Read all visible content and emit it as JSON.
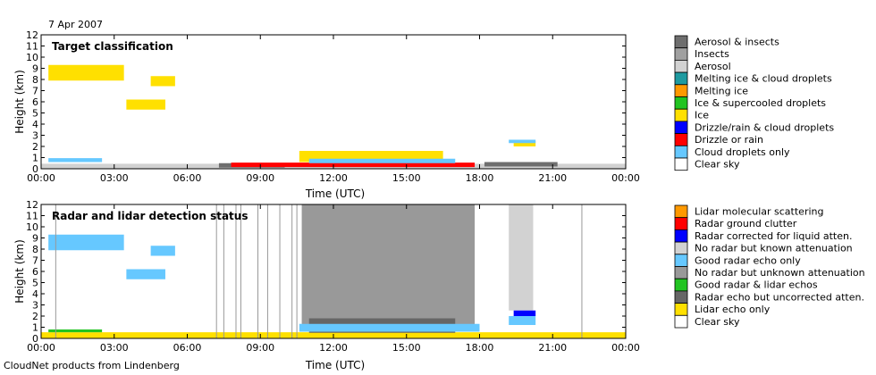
{
  "date_label": "7 Apr 2007",
  "footer_label": "CloudNet products from Lindenberg",
  "chart_data": [
    {
      "type": "heatmap",
      "title": "Target classification",
      "xlabel": "Time (UTC)",
      "ylabel": "Height (km)",
      "xlim": [
        0,
        24
      ],
      "ylim": [
        0,
        12
      ],
      "xticks": [
        "00:00",
        "03:00",
        "06:00",
        "09:00",
        "12:00",
        "15:00",
        "18:00",
        "21:00",
        "00:00"
      ],
      "yticks": [
        "0",
        "1",
        "2",
        "3",
        "4",
        "5",
        "6",
        "7",
        "8",
        "9",
        "10",
        "11",
        "12"
      ],
      "legend": [
        {
          "label": "Aerosol & insects",
          "color": "#6e6e6e"
        },
        {
          "label": "Insects",
          "color": "#a0a0a0"
        },
        {
          "label": "Aerosol",
          "color": "#d2d2d2"
        },
        {
          "label": "Melting ice & cloud droplets",
          "color": "#1e9aa0"
        },
        {
          "label": "Melting ice",
          "color": "#ff9900"
        },
        {
          "label": "Ice & supercooled droplets",
          "color": "#22c422"
        },
        {
          "label": "Ice",
          "color": "#ffe000"
        },
        {
          "label": "Drizzle/rain & cloud droplets",
          "color": "#0000ff"
        },
        {
          "label": "Drizzle or rain",
          "color": "#ff0000"
        },
        {
          "label": "Cloud droplets only",
          "color": "#66c8ff"
        },
        {
          "label": "Clear sky",
          "color": "#ffffff"
        }
      ],
      "regions": [
        {
          "class": "Ice",
          "t": [
            0.3,
            3.4
          ],
          "h": [
            7.9,
            9.3
          ]
        },
        {
          "class": "Ice",
          "t": [
            4.5,
            5.5
          ],
          "h": [
            7.4,
            8.3
          ]
        },
        {
          "class": "Ice",
          "t": [
            3.5,
            5.1
          ],
          "h": [
            5.3,
            6.2
          ]
        },
        {
          "class": "Aerosol",
          "t": [
            0.0,
            24.0
          ],
          "h": [
            0.0,
            0.45
          ]
        },
        {
          "class": "Cloud droplets only",
          "t": [
            0.3,
            2.5
          ],
          "h": [
            0.6,
            0.95
          ]
        },
        {
          "class": "Aerosol & insects",
          "t": [
            7.3,
            10.0
          ],
          "h": [
            0.1,
            0.5
          ]
        },
        {
          "class": "Drizzle or rain",
          "t": [
            7.8,
            17.8
          ],
          "h": [
            0.15,
            0.55
          ]
        },
        {
          "class": "Ice",
          "t": [
            10.6,
            16.5
          ],
          "h": [
            0.6,
            1.6
          ]
        },
        {
          "class": "Cloud droplets only",
          "t": [
            11.0,
            17.0
          ],
          "h": [
            0.5,
            0.9
          ]
        },
        {
          "class": "Ice",
          "t": [
            19.4,
            20.3
          ],
          "h": [
            2.0,
            2.5
          ]
        },
        {
          "class": "Cloud droplets only",
          "t": [
            19.2,
            20.3
          ],
          "h": [
            2.3,
            2.6
          ]
        },
        {
          "class": "Aerosol & insects",
          "t": [
            18.2,
            21.2
          ],
          "h": [
            0.2,
            0.6
          ]
        }
      ]
    },
    {
      "type": "heatmap",
      "title": "Radar and lidar detection status",
      "xlabel": "Time (UTC)",
      "ylabel": "Height (km)",
      "xlim": [
        0,
        24
      ],
      "ylim": [
        0,
        12
      ],
      "xticks": [
        "00:00",
        "03:00",
        "06:00",
        "09:00",
        "12:00",
        "15:00",
        "18:00",
        "21:00",
        "00:00"
      ],
      "yticks": [
        "0",
        "1",
        "2",
        "3",
        "4",
        "5",
        "6",
        "7",
        "8",
        "9",
        "10",
        "11",
        "12"
      ],
      "legend": [
        {
          "label": "Lidar molecular scattering",
          "color": "#ff9900"
        },
        {
          "label": "Radar ground clutter",
          "color": "#ff0000"
        },
        {
          "label": "Radar corrected for liquid atten.",
          "color": "#0000ff"
        },
        {
          "label": "No radar but known attenuation",
          "color": "#d2d2d2"
        },
        {
          "label": "Good radar echo only",
          "color": "#66c8ff"
        },
        {
          "label": "No radar but unknown attenuation",
          "color": "#999999"
        },
        {
          "label": "Good radar & lidar echos",
          "color": "#22c422"
        },
        {
          "label": "Radar echo but uncorrected atten.",
          "color": "#666666"
        },
        {
          "label": "Lidar echo only",
          "color": "#ffe000"
        },
        {
          "label": "Clear sky",
          "color": "#ffffff"
        }
      ],
      "regions": [
        {
          "class": "Good radar echo only",
          "t": [
            0.3,
            3.4
          ],
          "h": [
            7.9,
            9.3
          ]
        },
        {
          "class": "Good radar echo only",
          "t": [
            4.5,
            5.5
          ],
          "h": [
            7.4,
            8.3
          ]
        },
        {
          "class": "Good radar echo only",
          "t": [
            3.5,
            5.1
          ],
          "h": [
            5.3,
            6.2
          ]
        },
        {
          "class": "Lidar echo only",
          "t": [
            0.0,
            24.0
          ],
          "h": [
            0.0,
            0.55
          ]
        },
        {
          "class": "Good radar & lidar echos",
          "t": [
            0.3,
            2.5
          ],
          "h": [
            0.55,
            0.8
          ]
        },
        {
          "class": "No radar but unknown attenuation",
          "t": [
            10.7,
            17.8
          ],
          "h": [
            0.6,
            12.0
          ]
        },
        {
          "class": "Radar echo but uncorrected atten.",
          "t": [
            11.0,
            17.0
          ],
          "h": [
            0.5,
            1.8
          ]
        },
        {
          "class": "Good radar echo only",
          "t": [
            10.6,
            18.0
          ],
          "h": [
            0.6,
            1.3
          ]
        },
        {
          "class": "No radar but known attenuation",
          "t": [
            19.2,
            20.2
          ],
          "h": [
            2.5,
            12.0
          ]
        },
        {
          "class": "Radar corrected for liquid atten.",
          "t": [
            19.4,
            20.3
          ],
          "h": [
            2.0,
            2.5
          ]
        },
        {
          "class": "Good radar echo only",
          "t": [
            19.2,
            20.3
          ],
          "h": [
            1.2,
            2.0
          ]
        }
      ],
      "attenuation_lines_utc": [
        0.6,
        7.2,
        7.5,
        8.0,
        8.2,
        8.9,
        9.3,
        9.8,
        10.3,
        10.5,
        22.2
      ]
    }
  ]
}
